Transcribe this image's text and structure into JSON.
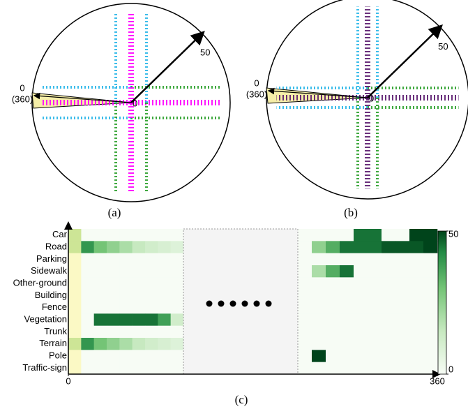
{
  "panels": [
    {
      "caption": "(a)",
      "angle_zero": "0",
      "angle_full": "(360)",
      "range": "50",
      "origin": "0"
    },
    {
      "caption": "(b)",
      "angle_zero": "0",
      "angle_full": "(360)",
      "range": "50",
      "origin": "0"
    }
  ],
  "chart_data": {
    "type": "heatmap",
    "caption": "(c)",
    "categories": [
      "Car",
      "Road",
      "Parking",
      "Sidewalk",
      "Other-ground",
      "Building",
      "Fence",
      "Vegetation",
      "Trunk",
      "Terrain",
      "Pole",
      "Traffic-sign"
    ],
    "xlim": [
      0,
      360
    ],
    "xticks": [
      0,
      360
    ],
    "zlim": [
      0,
      50
    ],
    "zticks": [
      0,
      50
    ],
    "z_left": [
      [
        25,
        0,
        0,
        0,
        0,
        0,
        0,
        0,
        0
      ],
      [
        25,
        40,
        30,
        25,
        20,
        15,
        12,
        10,
        8
      ],
      [
        0,
        0,
        0,
        0,
        0,
        0,
        0,
        0,
        0
      ],
      [
        0,
        0,
        0,
        0,
        0,
        0,
        0,
        0,
        0
      ],
      [
        0,
        0,
        0,
        0,
        0,
        0,
        0,
        0,
        0
      ],
      [
        0,
        0,
        0,
        0,
        0,
        0,
        0,
        0,
        0
      ],
      [
        0,
        0,
        0,
        0,
        0,
        0,
        0,
        0,
        0
      ],
      [
        0,
        0,
        45,
        45,
        45,
        45,
        45,
        38,
        12
      ],
      [
        0,
        0,
        0,
        0,
        0,
        0,
        0,
        0,
        0
      ],
      [
        25,
        40,
        30,
        25,
        20,
        15,
        12,
        10,
        8
      ],
      [
        0,
        0,
        0,
        0,
        0,
        0,
        0,
        0,
        0
      ],
      [
        0,
        0,
        0,
        0,
        0,
        0,
        0,
        0,
        0
      ]
    ],
    "z_right": [
      [
        0,
        0,
        0,
        0,
        45,
        45,
        0,
        0,
        50,
        50
      ],
      [
        0,
        25,
        35,
        45,
        45,
        45,
        48,
        48,
        48,
        50
      ],
      [
        0,
        0,
        0,
        0,
        0,
        0,
        0,
        0,
        0,
        0
      ],
      [
        0,
        20,
        35,
        45,
        0,
        0,
        0,
        0,
        0,
        0
      ],
      [
        0,
        0,
        0,
        0,
        0,
        0,
        0,
        0,
        0,
        0
      ],
      [
        0,
        0,
        0,
        0,
        0,
        0,
        0,
        0,
        0,
        0
      ],
      [
        0,
        0,
        0,
        0,
        0,
        0,
        0,
        0,
        0,
        0
      ],
      [
        0,
        0,
        0,
        0,
        0,
        0,
        0,
        0,
        0,
        0
      ],
      [
        0,
        0,
        0,
        0,
        0,
        0,
        0,
        0,
        0,
        0
      ],
      [
        0,
        0,
        0,
        0,
        0,
        0,
        0,
        0,
        0,
        0
      ],
      [
        0,
        50,
        0,
        0,
        0,
        0,
        0,
        0,
        0,
        0
      ],
      [
        0,
        0,
        0,
        0,
        0,
        0,
        0,
        0,
        0,
        0
      ]
    ]
  }
}
